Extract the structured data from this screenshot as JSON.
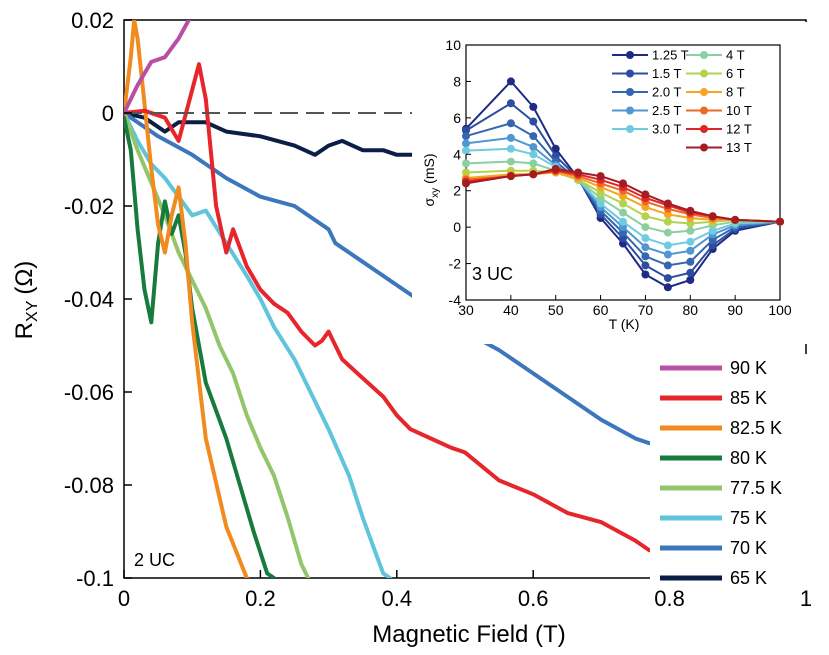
{
  "chart_data": [
    {
      "type": "line",
      "xlabel": "Magnetic Field (T)",
      "ylabel_main": "R",
      "ylabel_sub": "XY",
      "ylabel_unit": "(Ω)",
      "xlim": [
        0,
        1
      ],
      "ylim": [
        -0.1,
        0.02
      ],
      "xticks": [
        0,
        0.2,
        0.4,
        0.6,
        0.8,
        1
      ],
      "xtick_labels": [
        "0",
        "0.2",
        "0.4",
        "0.6",
        "0.8",
        "1"
      ],
      "yticks": [
        0.02,
        0,
        -0.02,
        -0.04,
        -0.06,
        -0.08,
        -0.1
      ],
      "ytick_labels": [
        "0.02",
        "0",
        "-0.02",
        "-0.04",
        "-0.06",
        "-0.08",
        "-0.1"
      ],
      "reference_line_y": 0,
      "annotation": "2 UC",
      "legend_position": "bottom-right",
      "series": [
        {
          "name": "90 K",
          "color": "#b84fa5",
          "x": [
            0,
            0.02,
            0.04,
            0.06,
            0.08,
            0.095
          ],
          "y": [
            0,
            0.006,
            0.011,
            0.012,
            0.016,
            0.02
          ]
        },
        {
          "name": "85 K",
          "color": "#e7262b",
          "x": [
            0,
            0.03,
            0.06,
            0.08,
            0.1,
            0.11,
            0.12,
            0.135,
            0.15,
            0.16,
            0.18,
            0.2,
            0.22,
            0.24,
            0.26,
            0.28,
            0.29,
            0.3,
            0.32,
            0.35,
            0.38,
            0.4,
            0.42,
            0.45,
            0.48,
            0.5,
            0.55,
            0.6,
            0.65,
            0.7,
            0.75,
            0.77
          ],
          "y": [
            0,
            0.0005,
            -0.001,
            -0.006,
            0.005,
            0.0105,
            0.003,
            -0.02,
            -0.03,
            -0.025,
            -0.033,
            -0.038,
            -0.041,
            -0.043,
            -0.047,
            -0.05,
            -0.049,
            -0.047,
            -0.053,
            -0.057,
            -0.061,
            -0.065,
            -0.068,
            -0.07,
            -0.072,
            -0.073,
            -0.079,
            -0.082,
            -0.086,
            -0.088,
            -0.092,
            -0.094
          ]
        },
        {
          "name": "82.5 K",
          "color": "#f28b1f",
          "x": [
            0,
            0.01,
            0.015,
            0.02,
            0.03,
            0.04,
            0.05,
            0.06,
            0.07,
            0.08,
            0.09,
            0.1,
            0.12,
            0.15,
            0.18
          ],
          "y": [
            0,
            0.012,
            0.02,
            0.016,
            0.002,
            -0.012,
            -0.024,
            -0.03,
            -0.022,
            -0.016,
            -0.028,
            -0.045,
            -0.07,
            -0.089,
            -0.1
          ]
        },
        {
          "name": "80 K",
          "color": "#167b3c",
          "x": [
            0,
            0.01,
            0.02,
            0.03,
            0.04,
            0.05,
            0.06,
            0.07,
            0.08,
            0.09,
            0.1,
            0.12,
            0.135,
            0.15,
            0.17,
            0.19,
            0.21,
            0.22
          ],
          "y": [
            -0.001,
            -0.008,
            -0.025,
            -0.038,
            -0.045,
            -0.028,
            -0.019,
            -0.026,
            -0.022,
            -0.03,
            -0.042,
            -0.058,
            -0.064,
            -0.07,
            -0.08,
            -0.09,
            -0.099,
            -0.1
          ]
        },
        {
          "name": "77.5 K",
          "color": "#93c56a",
          "x": [
            0,
            0.02,
            0.04,
            0.06,
            0.08,
            0.1,
            0.12,
            0.14,
            0.16,
            0.18,
            0.2,
            0.22,
            0.24,
            0.26,
            0.27
          ],
          "y": [
            0,
            -0.008,
            -0.015,
            -0.022,
            -0.03,
            -0.036,
            -0.042,
            -0.05,
            -0.056,
            -0.065,
            -0.072,
            -0.078,
            -0.087,
            -0.097,
            -0.1
          ]
        },
        {
          "name": "75 K",
          "color": "#5fc4dc",
          "x": [
            0,
            0.02,
            0.04,
            0.06,
            0.08,
            0.1,
            0.12,
            0.15,
            0.18,
            0.2,
            0.22,
            0.25,
            0.28,
            0.3,
            0.33,
            0.35,
            0.37,
            0.38,
            0.39
          ],
          "y": [
            0,
            -0.006,
            -0.011,
            -0.014,
            -0.018,
            -0.022,
            -0.021,
            -0.028,
            -0.035,
            -0.04,
            -0.046,
            -0.053,
            -0.062,
            -0.068,
            -0.078,
            -0.087,
            -0.095,
            -0.099,
            -0.1
          ]
        },
        {
          "name": "70 K",
          "color": "#3c77bd",
          "x": [
            0,
            0.05,
            0.1,
            0.12,
            0.15,
            0.2,
            0.25,
            0.3,
            0.31,
            0.35,
            0.4,
            0.45,
            0.5,
            0.55,
            0.6,
            0.65,
            0.7,
            0.75,
            0.77
          ],
          "y": [
            0,
            -0.005,
            -0.009,
            -0.011,
            -0.014,
            -0.018,
            -0.02,
            -0.025,
            -0.028,
            -0.032,
            -0.037,
            -0.042,
            -0.047,
            -0.051,
            -0.056,
            -0.061,
            -0.066,
            -0.07,
            -0.071
          ]
        },
        {
          "name": "65 K",
          "color": "#0c1e45",
          "x": [
            0,
            0.03,
            0.06,
            0.08,
            0.1,
            0.12,
            0.15,
            0.2,
            0.25,
            0.28,
            0.3,
            0.32,
            0.35,
            0.38,
            0.4,
            0.44
          ],
          "y": [
            0,
            -0.001,
            -0.004,
            -0.002,
            -0.002,
            -0.002,
            -0.004,
            -0.005,
            -0.007,
            -0.009,
            -0.007,
            -0.006,
            -0.008,
            -0.008,
            -0.009,
            -0.009
          ]
        }
      ]
    },
    {
      "type": "line",
      "xlabel": "T (K)",
      "ylabel_main": "σ",
      "ylabel_sub": "xy",
      "ylabel_unit": "(mS)",
      "xlim": [
        30,
        100
      ],
      "ylim": [
        -4,
        10
      ],
      "xticks": [
        30,
        40,
        50,
        60,
        70,
        80,
        90,
        100
      ],
      "xtick_labels": [
        "30",
        "40",
        "50",
        "60",
        "70",
        "80",
        "90",
        "100"
      ],
      "yticks": [
        -4,
        -2,
        0,
        2,
        4,
        6,
        8,
        10
      ],
      "ytick_labels": [
        "-4",
        "-2",
        "0",
        "2",
        "4",
        "6",
        "8",
        "10"
      ],
      "annotation": "3 UC",
      "legend_position": "top-right",
      "x": [
        30,
        40,
        45,
        50,
        55,
        60,
        65,
        70,
        75,
        80,
        85,
        90,
        100
      ],
      "series": [
        {
          "name": "1.25 T",
          "color": "#1f2a85",
          "values": [
            5.4,
            8.0,
            6.6,
            4.3,
            2.7,
            0.5,
            -0.9,
            -2.6,
            -3.3,
            -2.9,
            -1.2,
            -0.2,
            0.3
          ]
        },
        {
          "name": "1.5 T",
          "color": "#2d4ea0",
          "values": [
            5.3,
            6.8,
            5.8,
            3.9,
            2.7,
            0.7,
            -0.6,
            -2.1,
            -2.8,
            -2.5,
            -1.0,
            -0.1,
            0.3
          ]
        },
        {
          "name": "2.0 T",
          "color": "#3566b0",
          "values": [
            5.0,
            5.7,
            5.0,
            3.6,
            2.6,
            0.9,
            -0.3,
            -1.6,
            -2.1,
            -1.9,
            -0.7,
            0.0,
            0.3
          ]
        },
        {
          "name": "2.5 T",
          "color": "#4f97d1",
          "values": [
            4.6,
            4.9,
            4.4,
            3.4,
            2.6,
            1.1,
            0.0,
            -1.1,
            -1.5,
            -1.3,
            -0.4,
            0.1,
            0.3
          ]
        },
        {
          "name": "3.0 T",
          "color": "#6fcbe2",
          "values": [
            4.2,
            4.3,
            4.0,
            3.3,
            2.6,
            1.3,
            0.3,
            -0.6,
            -1.0,
            -0.8,
            -0.2,
            0.2,
            0.3
          ]
        },
        {
          "name": "4 T",
          "color": "#8ccfa0",
          "values": [
            3.5,
            3.6,
            3.5,
            3.1,
            2.6,
            1.6,
            0.8,
            0.0,
            -0.3,
            -0.2,
            0.1,
            0.3,
            0.3
          ]
        },
        {
          "name": "6 T",
          "color": "#b3d34d",
          "values": [
            3.0,
            3.1,
            3.1,
            3.0,
            2.6,
            1.9,
            1.3,
            0.6,
            0.3,
            0.2,
            0.3,
            0.4,
            0.3
          ]
        },
        {
          "name": "8 T",
          "color": "#f5a623",
          "values": [
            2.7,
            2.9,
            2.9,
            3.0,
            2.7,
            2.2,
            1.7,
            1.1,
            0.7,
            0.5,
            0.4,
            0.4,
            0.3
          ]
        },
        {
          "name": "10 T",
          "color": "#ee6a24",
          "values": [
            2.6,
            2.8,
            2.9,
            3.1,
            2.8,
            2.4,
            2.0,
            1.4,
            1.0,
            0.7,
            0.5,
            0.4,
            0.3
          ]
        },
        {
          "name": "12 T",
          "color": "#e02427",
          "values": [
            2.5,
            2.8,
            2.9,
            3.1,
            2.9,
            2.6,
            2.2,
            1.6,
            1.2,
            0.8,
            0.6,
            0.4,
            0.3
          ]
        },
        {
          "name": "13 T",
          "color": "#a31d22",
          "values": [
            2.4,
            2.8,
            2.9,
            3.2,
            3.0,
            2.8,
            2.4,
            1.8,
            1.3,
            0.9,
            0.6,
            0.4,
            0.3
          ]
        }
      ]
    }
  ]
}
